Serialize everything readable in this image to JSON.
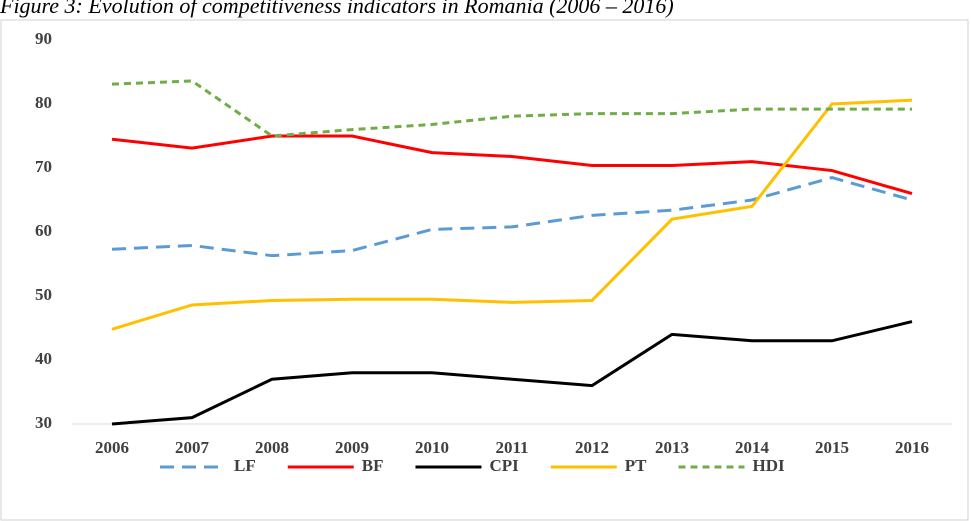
{
  "chart_data": {
    "type": "line",
    "title": "Figure 3: Evolution of competitiveness indicators in Romania (2006 – 2016)",
    "categories": [
      "2006",
      "2007",
      "2008",
      "2009",
      "2010",
      "2011",
      "2012",
      "2013",
      "2014",
      "2015",
      "2016"
    ],
    "series": [
      {
        "name": "LF",
        "color": "#5b9bd5",
        "dash": "dashed",
        "values": [
          57.3,
          57.9,
          56.3,
          57.1,
          60.4,
          60.8,
          62.6,
          63.4,
          65,
          68.5,
          65
        ]
      },
      {
        "name": "BF",
        "color": "#ff0000",
        "dash": "solid",
        "values": [
          74.5,
          73.1,
          75,
          75,
          72.4,
          71.8,
          70.4,
          70.4,
          71,
          69.6,
          66
        ]
      },
      {
        "name": "CPI",
        "color": "#000000",
        "dash": "solid",
        "values": [
          30,
          31,
          37,
          38,
          38,
          37,
          36,
          44,
          43,
          43,
          46
        ]
      },
      {
        "name": "PT",
        "color": "#ffc000",
        "dash": "solid",
        "values": [
          44.8,
          48.6,
          49.3,
          49.5,
          49.5,
          49,
          49.3,
          62,
          64,
          80,
          80.6
        ]
      },
      {
        "name": "HDI",
        "color": "#70ad47",
        "dash": "dotted",
        "values": [
          83.1,
          83.6,
          75,
          76,
          76.8,
          78.1,
          78.5,
          78.5,
          79.2,
          79.2,
          79.2
        ]
      }
    ],
    "ylim": [
      30,
      90
    ],
    "yticks": [
      30,
      40,
      50,
      60,
      70,
      80,
      90
    ],
    "grid": false,
    "legend": "bottom"
  }
}
